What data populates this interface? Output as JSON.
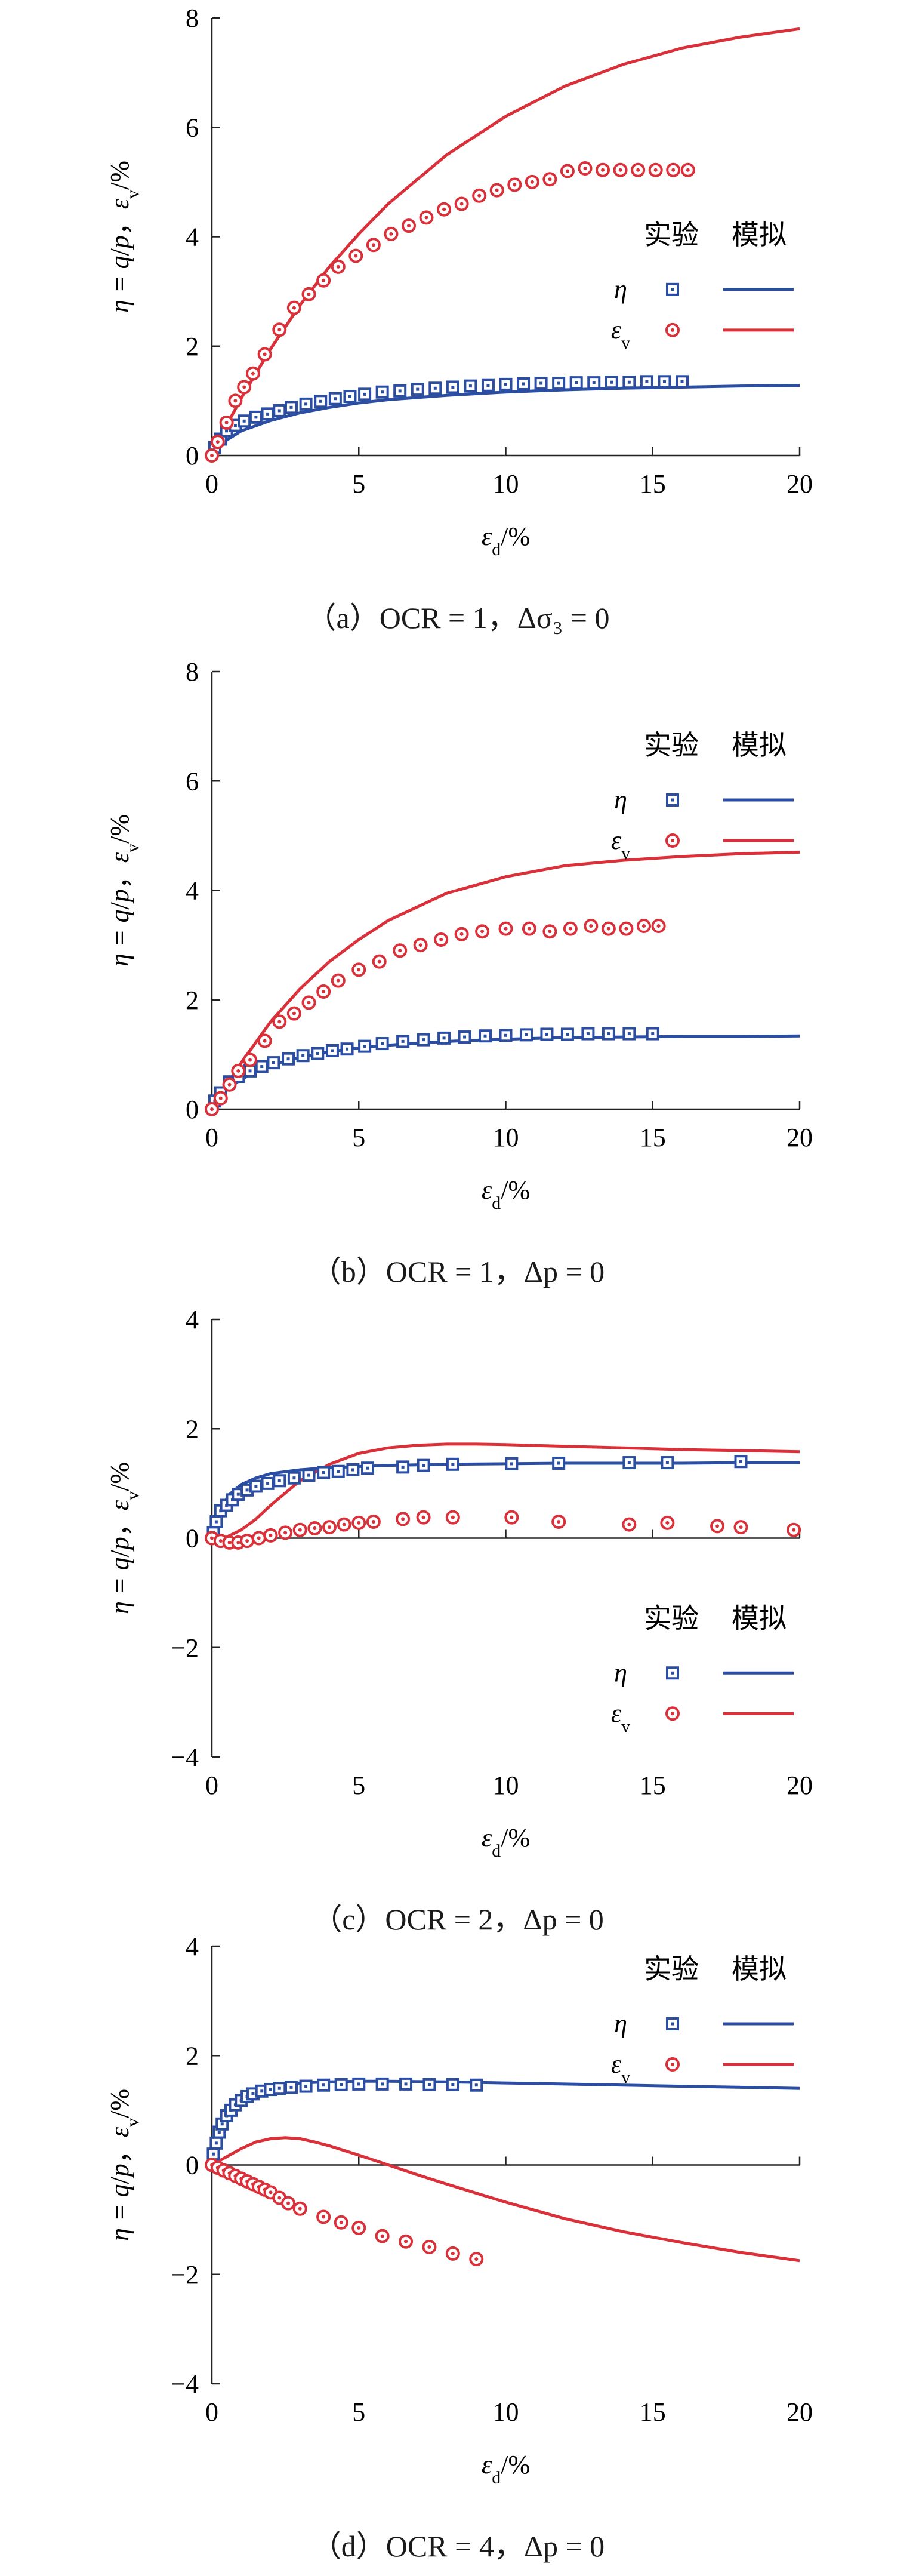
{
  "chart_data": [
    {
      "type": "line",
      "caption": "（a）OCR = 1，Δσ₃ = 0",
      "xlabel": "ε_d/%",
      "ylabel": "η = q/p，ε_v/%",
      "xlim": [
        0,
        20
      ],
      "ylim": [
        0,
        8
      ],
      "xticks": [
        0,
        5,
        10,
        15,
        20
      ],
      "yticks": [
        0,
        2,
        4,
        6,
        8
      ],
      "legend": {
        "placement": "right",
        "header_test": "实验",
        "header_sim": "模拟"
      },
      "series": [
        {
          "name": "η",
          "kind": "test",
          "marker": "square",
          "color": "#2b4ea3",
          "x": [
            0.1,
            0.3,
            0.5,
            0.8,
            1.1,
            1.5,
            1.9,
            2.3,
            2.7,
            3.2,
            3.7,
            4.2,
            4.7,
            5.2,
            5.8,
            6.4,
            7,
            7.6,
            8.2,
            8.8,
            9.4,
            10,
            10.6,
            11.2,
            11.8,
            12.4,
            13,
            13.6,
            14.2,
            14.8,
            15.4,
            16
          ],
          "y": [
            0.15,
            0.3,
            0.45,
            0.55,
            0.63,
            0.7,
            0.76,
            0.82,
            0.88,
            0.94,
            0.99,
            1.04,
            1.08,
            1.12,
            1.16,
            1.18,
            1.21,
            1.23,
            1.25,
            1.27,
            1.28,
            1.3,
            1.31,
            1.32,
            1.32,
            1.33,
            1.33,
            1.34,
            1.34,
            1.35,
            1.35,
            1.35
          ]
        },
        {
          "name": "ε_v",
          "kind": "test",
          "marker": "circle",
          "color": "#d9303a",
          "x": [
            0,
            0.2,
            0.5,
            0.8,
            1.1,
            1.4,
            1.8,
            2.3,
            2.8,
            3.3,
            3.8,
            4.3,
            4.9,
            5.5,
            6.1,
            6.7,
            7.3,
            7.9,
            8.5,
            9.1,
            9.7,
            10.3,
            10.9,
            11.5,
            12.1,
            12.7,
            13.3,
            13.9,
            14.5,
            15.1,
            15.7,
            16.2
          ],
          "y": [
            0,
            0.25,
            0.6,
            1.0,
            1.25,
            1.5,
            1.85,
            2.3,
            2.7,
            2.95,
            3.2,
            3.45,
            3.65,
            3.85,
            4.05,
            4.2,
            4.35,
            4.5,
            4.6,
            4.75,
            4.85,
            4.95,
            5.0,
            5.05,
            5.2,
            5.25,
            5.22,
            5.22,
            5.22,
            5.22,
            5.22,
            5.22
          ]
        },
        {
          "name": "η",
          "kind": "sim",
          "color": "#2b4ea3",
          "x": [
            0,
            0.5,
            1,
            2,
            3,
            4,
            5,
            6,
            8,
            10,
            12,
            14,
            16,
            18,
            20
          ],
          "y": [
            0,
            0.28,
            0.45,
            0.64,
            0.78,
            0.88,
            0.96,
            1.02,
            1.1,
            1.16,
            1.2,
            1.23,
            1.25,
            1.27,
            1.28
          ]
        },
        {
          "name": "ε_v",
          "kind": "sim",
          "color": "#d9303a",
          "x": [
            0,
            0.5,
            1,
            2,
            3,
            4,
            5,
            6,
            8,
            10,
            12,
            14,
            16,
            18,
            20
          ],
          "y": [
            0,
            0.55,
            1.05,
            1.95,
            2.75,
            3.45,
            4.05,
            4.6,
            5.5,
            6.2,
            6.75,
            7.15,
            7.45,
            7.65,
            7.8
          ]
        }
      ]
    },
    {
      "type": "line",
      "caption": "（b）OCR = 1，Δp = 0",
      "xlabel": "ε_d/%",
      "ylabel": "η = q/p，ε_v/%",
      "xlim": [
        0,
        20
      ],
      "ylim": [
        0,
        8
      ],
      "xticks": [
        0,
        5,
        10,
        15,
        20
      ],
      "yticks": [
        0,
        2,
        4,
        6,
        8
      ],
      "legend": {
        "placement": "top-right",
        "header_test": "实验",
        "header_sim": "模拟"
      },
      "series": [
        {
          "name": "η",
          "kind": "test",
          "marker": "square",
          "color": "#2b4ea3",
          "x": [
            0.1,
            0.3,
            0.6,
            0.9,
            1.3,
            1.7,
            2.1,
            2.6,
            3.1,
            3.6,
            4.1,
            4.6,
            5.2,
            5.8,
            6.5,
            7.2,
            7.9,
            8.6,
            9.3,
            10,
            10.7,
            11.4,
            12.1,
            12.8,
            13.5,
            14.2,
            15
          ],
          "y": [
            0.15,
            0.3,
            0.5,
            0.6,
            0.7,
            0.78,
            0.85,
            0.92,
            0.98,
            1.02,
            1.07,
            1.1,
            1.15,
            1.2,
            1.24,
            1.27,
            1.3,
            1.32,
            1.34,
            1.35,
            1.36,
            1.37,
            1.37,
            1.38,
            1.38,
            1.38,
            1.38
          ]
        },
        {
          "name": "ε_v",
          "kind": "test",
          "marker": "circle",
          "color": "#d9303a",
          "x": [
            0,
            0.3,
            0.6,
            0.9,
            1.3,
            1.8,
            2.3,
            2.8,
            3.3,
            3.8,
            4.3,
            5.0,
            5.7,
            6.4,
            7.1,
            7.8,
            8.5,
            9.2,
            10,
            10.8,
            11.5,
            12.2,
            12.9,
            13.5,
            14.1,
            14.7,
            15.2
          ],
          "y": [
            0,
            0.2,
            0.45,
            0.7,
            0.9,
            1.25,
            1.6,
            1.75,
            1.95,
            2.15,
            2.35,
            2.55,
            2.7,
            2.9,
            3.0,
            3.1,
            3.2,
            3.25,
            3.3,
            3.3,
            3.25,
            3.3,
            3.35,
            3.3,
            3.3,
            3.35,
            3.35
          ]
        },
        {
          "name": "η",
          "kind": "sim",
          "color": "#2b4ea3",
          "x": [
            0,
            0.5,
            1,
            2,
            3,
            4,
            5,
            6,
            8,
            10,
            12,
            14,
            16,
            18,
            20
          ],
          "y": [
            0,
            0.35,
            0.55,
            0.8,
            0.95,
            1.05,
            1.12,
            1.17,
            1.24,
            1.28,
            1.31,
            1.32,
            1.33,
            1.33,
            1.34
          ]
        },
        {
          "name": "ε_v",
          "kind": "sim",
          "color": "#d9303a",
          "x": [
            0,
            0.5,
            1,
            2,
            3,
            4,
            5,
            6,
            8,
            10,
            12,
            14,
            16,
            18,
            20
          ],
          "y": [
            0,
            0.45,
            0.85,
            1.6,
            2.2,
            2.7,
            3.1,
            3.45,
            3.95,
            4.25,
            4.45,
            4.55,
            4.62,
            4.67,
            4.7
          ]
        }
      ]
    },
    {
      "type": "line",
      "caption": "（c）OCR = 2，Δp = 0",
      "xlabel": "ε_d/%",
      "ylabel": "η = q/p，ε_v/%",
      "xlim": [
        0,
        20
      ],
      "ylim": [
        -4,
        4
      ],
      "xticks": [
        0,
        5,
        10,
        15,
        20
      ],
      "yticks": [
        -4,
        -2,
        0,
        2,
        4
      ],
      "legend": {
        "placement": "bottom-right",
        "header_test": "实验",
        "header_sim": "模拟"
      },
      "series": [
        {
          "name": "η",
          "kind": "test",
          "marker": "square",
          "color": "#2b4ea3",
          "x": [
            0.05,
            0.15,
            0.3,
            0.5,
            0.7,
            0.9,
            1.2,
            1.5,
            1.9,
            2.3,
            2.8,
            3.3,
            3.8,
            4.3,
            4.8,
            5.3,
            6.5,
            7.2,
            8.2,
            10.2,
            11.8,
            14.2,
            15.5,
            18
          ],
          "y": [
            0.1,
            0.3,
            0.5,
            0.6,
            0.7,
            0.8,
            0.88,
            0.95,
            1.0,
            1.05,
            1.1,
            1.15,
            1.2,
            1.22,
            1.25,
            1.28,
            1.3,
            1.33,
            1.35,
            1.36,
            1.37,
            1.38,
            1.38,
            1.4
          ]
        },
        {
          "name": "ε_v",
          "kind": "test",
          "marker": "circle",
          "color": "#d9303a",
          "x": [
            0,
            0.3,
            0.6,
            0.9,
            1.2,
            1.6,
            2.0,
            2.5,
            3.0,
            3.5,
            4.0,
            4.5,
            5.0,
            5.5,
            6.5,
            7.2,
            8.2,
            10.2,
            11.8,
            14.2,
            15.5,
            17.2,
            18,
            19.8
          ],
          "y": [
            0,
            -0.05,
            -0.08,
            -0.08,
            -0.05,
            0.0,
            0.05,
            0.1,
            0.15,
            0.18,
            0.2,
            0.25,
            0.28,
            0.3,
            0.35,
            0.38,
            0.38,
            0.38,
            0.3,
            0.25,
            0.28,
            0.22,
            0.2,
            0.15
          ]
        },
        {
          "name": "η",
          "kind": "sim",
          "color": "#2b4ea3",
          "x": [
            0,
            0.3,
            0.6,
            1,
            1.5,
            2,
            3,
            4,
            5,
            6,
            8,
            10,
            12,
            14,
            16,
            18,
            20
          ],
          "y": [
            0,
            0.55,
            0.8,
            0.98,
            1.1,
            1.18,
            1.25,
            1.29,
            1.31,
            1.33,
            1.35,
            1.36,
            1.37,
            1.37,
            1.37,
            1.38,
            1.38
          ]
        },
        {
          "name": "ε_v",
          "kind": "sim",
          "color": "#d9303a",
          "x": [
            0,
            0.5,
            1,
            1.5,
            2,
            3,
            4,
            5,
            6,
            7,
            8,
            9,
            10,
            12,
            14,
            16,
            18,
            20
          ],
          "y": [
            0,
            0.02,
            0.15,
            0.35,
            0.6,
            1.05,
            1.35,
            1.55,
            1.65,
            1.7,
            1.72,
            1.72,
            1.71,
            1.68,
            1.65,
            1.62,
            1.6,
            1.58
          ]
        }
      ]
    },
    {
      "type": "line",
      "caption": "（d）OCR = 4，Δp = 0",
      "xlabel": "ε_d/%",
      "ylabel": "η = q/p，ε_v/%",
      "xlim": [
        0,
        20
      ],
      "ylim": [
        -4,
        4
      ],
      "xticks": [
        0,
        5,
        10,
        15,
        20
      ],
      "yticks": [
        -4,
        -2,
        0,
        2,
        4
      ],
      "legend": {
        "placement": "top-right",
        "header_test": "实验",
        "header_sim": "模拟"
      },
      "series": [
        {
          "name": "η",
          "kind": "test",
          "marker": "square",
          "color": "#2b4ea3",
          "x": [
            0.05,
            0.15,
            0.25,
            0.35,
            0.5,
            0.65,
            0.8,
            1.0,
            1.2,
            1.4,
            1.7,
            2.0,
            2.3,
            2.7,
            3.2,
            3.8,
            4.4,
            5.0,
            5.8,
            6.6,
            7.4,
            8.2,
            9.0
          ],
          "y": [
            0.2,
            0.4,
            0.6,
            0.75,
            0.9,
            1.0,
            1.1,
            1.18,
            1.25,
            1.3,
            1.35,
            1.38,
            1.4,
            1.42,
            1.44,
            1.46,
            1.47,
            1.48,
            1.48,
            1.48,
            1.47,
            1.47,
            1.46
          ]
        },
        {
          "name": "ε_v",
          "kind": "test",
          "marker": "circle",
          "color": "#d9303a",
          "x": [
            0,
            0.2,
            0.4,
            0.6,
            0.8,
            1.0,
            1.2,
            1.4,
            1.6,
            1.8,
            2.0,
            2.3,
            2.6,
            3.0,
            3.8,
            4.4,
            5.0,
            5.8,
            6.6,
            7.4,
            8.2,
            9.0
          ],
          "y": [
            0,
            -0.05,
            -0.1,
            -0.15,
            -0.2,
            -0.25,
            -0.3,
            -0.35,
            -0.4,
            -0.45,
            -0.5,
            -0.6,
            -0.7,
            -0.8,
            -0.95,
            -1.05,
            -1.15,
            -1.3,
            -1.4,
            -1.5,
            -1.62,
            -1.72
          ]
        },
        {
          "name": "η",
          "kind": "sim",
          "color": "#2b4ea3",
          "x": [
            0,
            0.2,
            0.4,
            0.7,
            1,
            1.5,
            2,
            3,
            4,
            5,
            6,
            8,
            10,
            12,
            14,
            16,
            18,
            20
          ],
          "y": [
            0,
            0.5,
            0.8,
            1.05,
            1.2,
            1.35,
            1.43,
            1.5,
            1.52,
            1.53,
            1.53,
            1.52,
            1.5,
            1.48,
            1.46,
            1.44,
            1.42,
            1.4
          ]
        },
        {
          "name": "ε_v",
          "kind": "sim",
          "color": "#d9303a",
          "x": [
            0,
            0.5,
            1,
            1.5,
            2,
            2.5,
            3,
            3.5,
            4,
            5,
            6,
            7,
            8,
            10,
            12,
            14,
            16,
            18,
            20
          ],
          "y": [
            0,
            0.15,
            0.3,
            0.42,
            0.48,
            0.5,
            0.48,
            0.42,
            0.35,
            0.18,
            0.0,
            -0.18,
            -0.35,
            -0.68,
            -0.98,
            -1.22,
            -1.42,
            -1.6,
            -1.75
          ]
        }
      ]
    }
  ]
}
